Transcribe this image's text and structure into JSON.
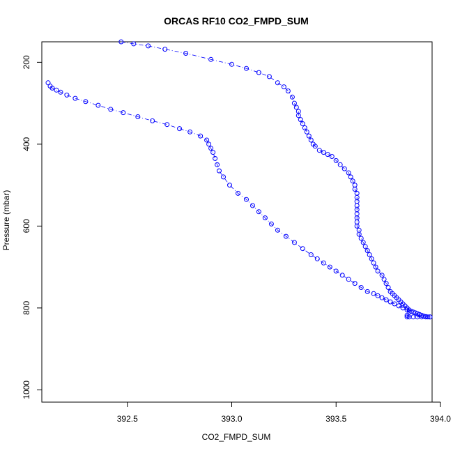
{
  "chart_data": {
    "type": "scatter",
    "title": "ORCAS RF10 CO2_FMPD_SUM",
    "xlabel": "CO2_FMPD_SUM",
    "ylabel": "Pressure (mbar)",
    "xlim": [
      392.09,
      393.96
    ],
    "ylim": [
      1030,
      150
    ],
    "y_reversed": true,
    "x_ticks": [
      392.5,
      393.0,
      393.5,
      394.0
    ],
    "x_tick_labels": [
      "392.5",
      "393.0",
      "393.5",
      "394.0"
    ],
    "y_ticks": [
      200,
      400,
      600,
      800,
      1000
    ],
    "y_tick_labels": [
      "200",
      "400",
      "600",
      "800",
      "1000"
    ],
    "grid": false,
    "marker": "open-circle",
    "colors": {
      "points": "#0000ff",
      "line": "#0000ff",
      "frame": "#000000"
    },
    "series": [
      {
        "x": [
          392.47,
          392.53,
          392.6,
          392.68,
          392.78,
          392.9,
          393.0,
          393.07,
          393.13,
          393.18,
          393.22,
          393.25,
          393.27,
          393.29,
          393.3,
          393.31,
          393.32,
          393.32,
          393.33,
          393.34,
          393.35,
          393.36,
          393.37,
          393.38,
          393.39,
          393.4,
          393.42,
          393.44,
          393.46,
          393.48,
          393.5,
          393.52,
          393.54,
          393.56,
          393.57,
          393.58,
          393.59,
          393.59,
          393.6,
          393.6,
          393.6,
          393.6,
          393.6,
          393.6,
          393.6,
          393.6,
          393.6,
          393.61,
          393.61,
          393.62,
          393.63,
          393.64,
          393.65,
          393.66,
          393.67,
          393.68,
          393.69,
          393.7,
          393.72,
          393.73,
          393.74,
          393.75,
          393.76,
          393.77,
          393.78,
          393.79,
          393.8,
          393.81,
          393.82,
          393.83,
          393.84,
          393.85,
          393.86,
          393.87,
          393.88,
          393.89,
          393.9,
          393.91,
          393.92,
          393.93,
          393.94,
          393.95
        ],
        "y": [
          150,
          155,
          160,
          168,
          178,
          193,
          205,
          215,
          225,
          235,
          250,
          260,
          270,
          285,
          300,
          310,
          320,
          330,
          340,
          350,
          360,
          370,
          380,
          390,
          400,
          405,
          415,
          420,
          425,
          430,
          440,
          450,
          460,
          470,
          480,
          490,
          500,
          510,
          520,
          530,
          540,
          550,
          560,
          570,
          580,
          590,
          600,
          610,
          620,
          630,
          640,
          650,
          660,
          670,
          680,
          690,
          700,
          710,
          720,
          730,
          740,
          750,
          760,
          765,
          770,
          775,
          780,
          785,
          790,
          795,
          800,
          805,
          808,
          810,
          812,
          814,
          816,
          818,
          820,
          821,
          822,
          822
        ]
      },
      {
        "x": [
          393.95,
          393.93,
          393.91,
          393.89,
          393.87,
          393.85,
          393.84,
          393.84,
          393.85,
          393.84,
          393.82,
          393.8,
          393.78,
          393.76,
          393.74,
          393.72,
          393.7,
          393.68,
          393.65,
          393.62,
          393.59,
          393.56,
          393.53,
          393.5,
          393.47,
          393.44,
          393.41,
          393.38,
          393.34,
          393.3,
          393.26,
          393.22,
          393.19,
          393.16,
          393.13,
          393.1,
          393.07,
          393.03,
          392.99,
          392.96,
          392.94,
          392.93,
          392.92,
          392.91,
          392.9,
          392.89,
          392.88,
          392.85,
          392.8,
          392.75,
          392.69,
          392.62,
          392.55,
          392.48,
          392.42,
          392.36,
          392.3,
          392.25,
          392.21,
          392.18,
          392.16,
          392.14,
          392.13,
          392.12
        ],
        "y": [
          822,
          822,
          822,
          822,
          822,
          822,
          822,
          818,
          810,
          805,
          800,
          795,
          790,
          785,
          780,
          775,
          770,
          765,
          760,
          750,
          740,
          730,
          720,
          710,
          700,
          690,
          680,
          670,
          655,
          640,
          625,
          610,
          595,
          580,
          565,
          550,
          535,
          520,
          500,
          480,
          465,
          450,
          435,
          420,
          410,
          400,
          390,
          380,
          370,
          362,
          352,
          343,
          333,
          323,
          315,
          305,
          296,
          288,
          280,
          273,
          268,
          263,
          258,
          250
        ]
      }
    ]
  }
}
